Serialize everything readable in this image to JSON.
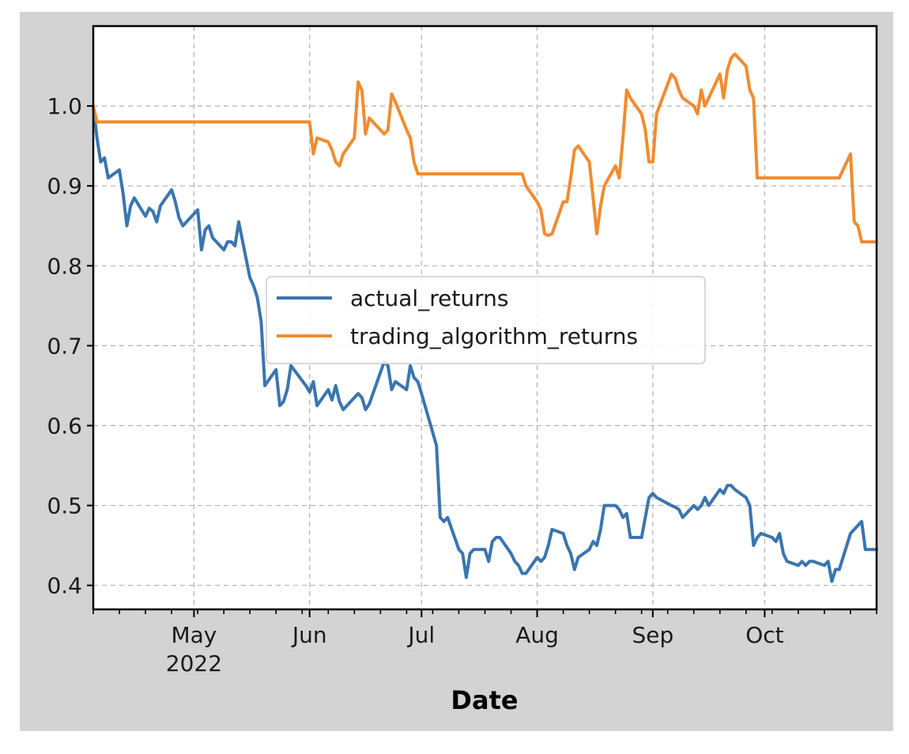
{
  "chart_data": {
    "type": "line",
    "title": "",
    "xlabel": "Date",
    "ylabel": "",
    "x_start": "2022-04-04",
    "x_end": "2022-10-31",
    "ylim": [
      0.37,
      1.1
    ],
    "yticks": [
      0.4,
      0.5,
      0.6,
      0.7,
      0.8,
      0.9,
      1.0
    ],
    "ytick_labels": [
      "0.4",
      "0.5",
      "0.6",
      "0.7",
      "0.8",
      "0.9",
      "1.0"
    ],
    "xticks": [
      {
        "date": "2022-05-01",
        "label": "May",
        "sublabel": "2022"
      },
      {
        "date": "2022-06-01",
        "label": "Jun",
        "sublabel": ""
      },
      {
        "date": "2022-07-01",
        "label": "Jul",
        "sublabel": ""
      },
      {
        "date": "2022-08-01",
        "label": "Aug",
        "sublabel": ""
      },
      {
        "date": "2022-09-01",
        "label": "Sep",
        "sublabel": ""
      },
      {
        "date": "2022-10-01",
        "label": "Oct",
        "sublabel": ""
      }
    ],
    "grid": true,
    "legend_position": "center",
    "series": [
      {
        "name": "actual_returns",
        "color": "#3a75b0",
        "points": [
          [
            "2022-04-04",
            1.0
          ],
          [
            "2022-04-05",
            0.96
          ],
          [
            "2022-04-06",
            0.93
          ],
          [
            "2022-04-07",
            0.935
          ],
          [
            "2022-04-08",
            0.91
          ],
          [
            "2022-04-11",
            0.92
          ],
          [
            "2022-04-12",
            0.89
          ],
          [
            "2022-04-13",
            0.85
          ],
          [
            "2022-04-14",
            0.875
          ],
          [
            "2022-04-15",
            0.885
          ],
          [
            "2022-04-18",
            0.862
          ],
          [
            "2022-04-19",
            0.872
          ],
          [
            "2022-04-20",
            0.868
          ],
          [
            "2022-04-21",
            0.855
          ],
          [
            "2022-04-22",
            0.875
          ],
          [
            "2022-04-25",
            0.895
          ],
          [
            "2022-04-26",
            0.88
          ],
          [
            "2022-04-27",
            0.86
          ],
          [
            "2022-04-28",
            0.85
          ],
          [
            "2022-04-29",
            0.855
          ],
          [
            "2022-05-02",
            0.87
          ],
          [
            "2022-05-03",
            0.82
          ],
          [
            "2022-05-04",
            0.845
          ],
          [
            "2022-05-05",
            0.85
          ],
          [
            "2022-05-06",
            0.835
          ],
          [
            "2022-05-09",
            0.82
          ],
          [
            "2022-05-10",
            0.83
          ],
          [
            "2022-05-11",
            0.83
          ],
          [
            "2022-05-12",
            0.825
          ],
          [
            "2022-05-13",
            0.855
          ],
          [
            "2022-05-16",
            0.785
          ],
          [
            "2022-05-17",
            0.775
          ],
          [
            "2022-05-18",
            0.76
          ],
          [
            "2022-05-19",
            0.73
          ],
          [
            "2022-05-20",
            0.65
          ],
          [
            "2022-05-23",
            0.67
          ],
          [
            "2022-05-24",
            0.625
          ],
          [
            "2022-05-25",
            0.63
          ],
          [
            "2022-05-26",
            0.645
          ],
          [
            "2022-05-27",
            0.675
          ],
          [
            "2022-05-31",
            0.65
          ],
          [
            "2022-06-01",
            0.642
          ],
          [
            "2022-06-02",
            0.655
          ],
          [
            "2022-06-03",
            0.625
          ],
          [
            "2022-06-06",
            0.645
          ],
          [
            "2022-06-07",
            0.632
          ],
          [
            "2022-06-08",
            0.65
          ],
          [
            "2022-06-09",
            0.63
          ],
          [
            "2022-06-10",
            0.62
          ],
          [
            "2022-06-13",
            0.635
          ],
          [
            "2022-06-14",
            0.64
          ],
          [
            "2022-06-15",
            0.635
          ],
          [
            "2022-06-16",
            0.62
          ],
          [
            "2022-06-17",
            0.627
          ],
          [
            "2022-06-21",
            0.68
          ],
          [
            "2022-06-22",
            0.675
          ],
          [
            "2022-06-23",
            0.645
          ],
          [
            "2022-06-24",
            0.655
          ],
          [
            "2022-06-27",
            0.645
          ],
          [
            "2022-06-28",
            0.675
          ],
          [
            "2022-06-29",
            0.66
          ],
          [
            "2022-06-30",
            0.655
          ],
          [
            "2022-07-01",
            0.64
          ],
          [
            "2022-07-05",
            0.575
          ],
          [
            "2022-07-06",
            0.485
          ],
          [
            "2022-07-07",
            0.48
          ],
          [
            "2022-07-08",
            0.485
          ],
          [
            "2022-07-11",
            0.445
          ],
          [
            "2022-07-12",
            0.44
          ],
          [
            "2022-07-13",
            0.41
          ],
          [
            "2022-07-14",
            0.44
          ],
          [
            "2022-07-15",
            0.445
          ],
          [
            "2022-07-18",
            0.445
          ],
          [
            "2022-07-19",
            0.43
          ],
          [
            "2022-07-20",
            0.455
          ],
          [
            "2022-07-21",
            0.46
          ],
          [
            "2022-07-22",
            0.46
          ],
          [
            "2022-07-25",
            0.44
          ],
          [
            "2022-07-26",
            0.43
          ],
          [
            "2022-07-27",
            0.425
          ],
          [
            "2022-07-28",
            0.415
          ],
          [
            "2022-07-29",
            0.415
          ],
          [
            "2022-08-01",
            0.435
          ],
          [
            "2022-08-02",
            0.43
          ],
          [
            "2022-08-03",
            0.435
          ],
          [
            "2022-08-04",
            0.45
          ],
          [
            "2022-08-05",
            0.47
          ],
          [
            "2022-08-08",
            0.465
          ],
          [
            "2022-08-09",
            0.45
          ],
          [
            "2022-08-10",
            0.44
          ],
          [
            "2022-08-11",
            0.42
          ],
          [
            "2022-08-12",
            0.435
          ],
          [
            "2022-08-15",
            0.445
          ],
          [
            "2022-08-16",
            0.455
          ],
          [
            "2022-08-17",
            0.45
          ],
          [
            "2022-08-18",
            0.47
          ],
          [
            "2022-08-19",
            0.5
          ],
          [
            "2022-08-22",
            0.5
          ],
          [
            "2022-08-23",
            0.495
          ],
          [
            "2022-08-24",
            0.485
          ],
          [
            "2022-08-25",
            0.49
          ],
          [
            "2022-08-26",
            0.46
          ],
          [
            "2022-08-29",
            0.46
          ],
          [
            "2022-08-30",
            0.485
          ],
          [
            "2022-08-31",
            0.51
          ],
          [
            "2022-09-01",
            0.515
          ],
          [
            "2022-09-02",
            0.51
          ],
          [
            "2022-09-06",
            0.5
          ],
          [
            "2022-09-07",
            0.498
          ],
          [
            "2022-09-08",
            0.495
          ],
          [
            "2022-09-09",
            0.485
          ],
          [
            "2022-09-12",
            0.5
          ],
          [
            "2022-09-13",
            0.495
          ],
          [
            "2022-09-14",
            0.5
          ],
          [
            "2022-09-15",
            0.51
          ],
          [
            "2022-09-16",
            0.5
          ],
          [
            "2022-09-19",
            0.52
          ],
          [
            "2022-09-20",
            0.515
          ],
          [
            "2022-09-21",
            0.525
          ],
          [
            "2022-09-22",
            0.525
          ],
          [
            "2022-09-23",
            0.52
          ],
          [
            "2022-09-26",
            0.51
          ],
          [
            "2022-09-27",
            0.5
          ],
          [
            "2022-09-28",
            0.45
          ],
          [
            "2022-09-29",
            0.46
          ],
          [
            "2022-09-30",
            0.465
          ],
          [
            "2022-10-03",
            0.46
          ],
          [
            "2022-10-04",
            0.455
          ],
          [
            "2022-10-05",
            0.465
          ],
          [
            "2022-10-06",
            0.44
          ],
          [
            "2022-10-07",
            0.43
          ],
          [
            "2022-10-10",
            0.425
          ],
          [
            "2022-10-11",
            0.43
          ],
          [
            "2022-10-12",
            0.425
          ],
          [
            "2022-10-13",
            0.43
          ],
          [
            "2022-10-14",
            0.43
          ],
          [
            "2022-10-17",
            0.425
          ],
          [
            "2022-10-18",
            0.43
          ],
          [
            "2022-10-19",
            0.405
          ],
          [
            "2022-10-20",
            0.42
          ],
          [
            "2022-10-21",
            0.42
          ],
          [
            "2022-10-24",
            0.465
          ],
          [
            "2022-10-25",
            0.47
          ],
          [
            "2022-10-26",
            0.475
          ],
          [
            "2022-10-27",
            0.48
          ],
          [
            "2022-10-28",
            0.445
          ],
          [
            "2022-10-31",
            0.445
          ]
        ]
      },
      {
        "name": "trading_algorithm_returns",
        "color": "#f08c30",
        "points": [
          [
            "2022-04-04",
            1.0
          ],
          [
            "2022-04-05",
            0.98
          ],
          [
            "2022-05-02",
            0.98
          ],
          [
            "2022-05-31",
            0.98
          ],
          [
            "2022-06-01",
            0.98
          ],
          [
            "2022-06-02",
            0.94
          ],
          [
            "2022-06-03",
            0.96
          ],
          [
            "2022-06-06",
            0.955
          ],
          [
            "2022-06-07",
            0.945
          ],
          [
            "2022-06-08",
            0.93
          ],
          [
            "2022-06-09",
            0.925
          ],
          [
            "2022-06-10",
            0.94
          ],
          [
            "2022-06-13",
            0.96
          ],
          [
            "2022-06-14",
            1.03
          ],
          [
            "2022-06-15",
            1.02
          ],
          [
            "2022-06-16",
            0.965
          ],
          [
            "2022-06-17",
            0.985
          ],
          [
            "2022-06-21",
            0.965
          ],
          [
            "2022-06-22",
            0.97
          ],
          [
            "2022-06-23",
            1.015
          ],
          [
            "2022-06-24",
            1.005
          ],
          [
            "2022-06-27",
            0.97
          ],
          [
            "2022-06-28",
            0.96
          ],
          [
            "2022-06-29",
            0.93
          ],
          [
            "2022-06-30",
            0.915
          ],
          [
            "2022-07-01",
            0.915
          ],
          [
            "2022-07-28",
            0.915
          ],
          [
            "2022-07-29",
            0.9
          ],
          [
            "2022-08-01",
            0.88
          ],
          [
            "2022-08-02",
            0.87
          ],
          [
            "2022-08-03",
            0.84
          ],
          [
            "2022-08-04",
            0.838
          ],
          [
            "2022-08-05",
            0.84
          ],
          [
            "2022-08-08",
            0.88
          ],
          [
            "2022-08-09",
            0.88
          ],
          [
            "2022-08-10",
            0.91
          ],
          [
            "2022-08-11",
            0.945
          ],
          [
            "2022-08-12",
            0.95
          ],
          [
            "2022-08-15",
            0.93
          ],
          [
            "2022-08-16",
            0.885
          ],
          [
            "2022-08-17",
            0.84
          ],
          [
            "2022-08-18",
            0.875
          ],
          [
            "2022-08-19",
            0.9
          ],
          [
            "2022-08-22",
            0.925
          ],
          [
            "2022-08-23",
            0.91
          ],
          [
            "2022-08-24",
            0.96
          ],
          [
            "2022-08-25",
            1.02
          ],
          [
            "2022-08-26",
            1.01
          ],
          [
            "2022-08-29",
            0.99
          ],
          [
            "2022-08-30",
            0.97
          ],
          [
            "2022-08-31",
            0.93
          ],
          [
            "2022-09-01",
            0.93
          ],
          [
            "2022-09-02",
            0.99
          ],
          [
            "2022-09-06",
            1.04
          ],
          [
            "2022-09-07",
            1.035
          ],
          [
            "2022-09-08",
            1.02
          ],
          [
            "2022-09-09",
            1.01
          ],
          [
            "2022-09-12",
            1.0
          ],
          [
            "2022-09-13",
            0.99
          ],
          [
            "2022-09-14",
            1.02
          ],
          [
            "2022-09-15",
            1.0
          ],
          [
            "2022-09-16",
            1.01
          ],
          [
            "2022-09-19",
            1.04
          ],
          [
            "2022-09-20",
            1.01
          ],
          [
            "2022-09-21",
            1.045
          ],
          [
            "2022-09-22",
            1.06
          ],
          [
            "2022-09-23",
            1.065
          ],
          [
            "2022-09-26",
            1.05
          ],
          [
            "2022-09-27",
            1.02
          ],
          [
            "2022-09-28",
            1.01
          ],
          [
            "2022-09-29",
            0.91
          ],
          [
            "2022-09-30",
            0.91
          ],
          [
            "2022-10-21",
            0.91
          ],
          [
            "2022-10-24",
            0.94
          ],
          [
            "2022-10-25",
            0.855
          ],
          [
            "2022-10-26",
            0.85
          ],
          [
            "2022-10-27",
            0.83
          ],
          [
            "2022-10-28",
            0.83
          ],
          [
            "2022-10-31",
            0.83
          ]
        ]
      }
    ]
  }
}
